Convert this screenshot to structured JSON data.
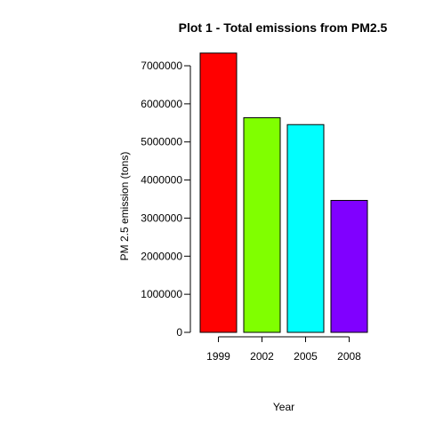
{
  "chart_data": {
    "type": "bar",
    "title": "Plot 1 - Total emissions from PM2.5",
    "xlabel": "Year",
    "ylabel": "PM 2.5 emission (tons)",
    "categories": [
      "1999",
      "2002",
      "2005",
      "2008"
    ],
    "values": [
      7332967,
      5635780,
      5454703,
      3464206
    ],
    "ylim": [
      0,
      7000000
    ],
    "yticks": [
      "0",
      "1000000",
      "2000000",
      "3000000",
      "4000000",
      "5000000",
      "6000000",
      "7000000"
    ],
    "colors": [
      "#FF0000",
      "#80FF00",
      "#00FFFF",
      "#8000FF"
    ],
    "grid": false,
    "legend": "none"
  }
}
